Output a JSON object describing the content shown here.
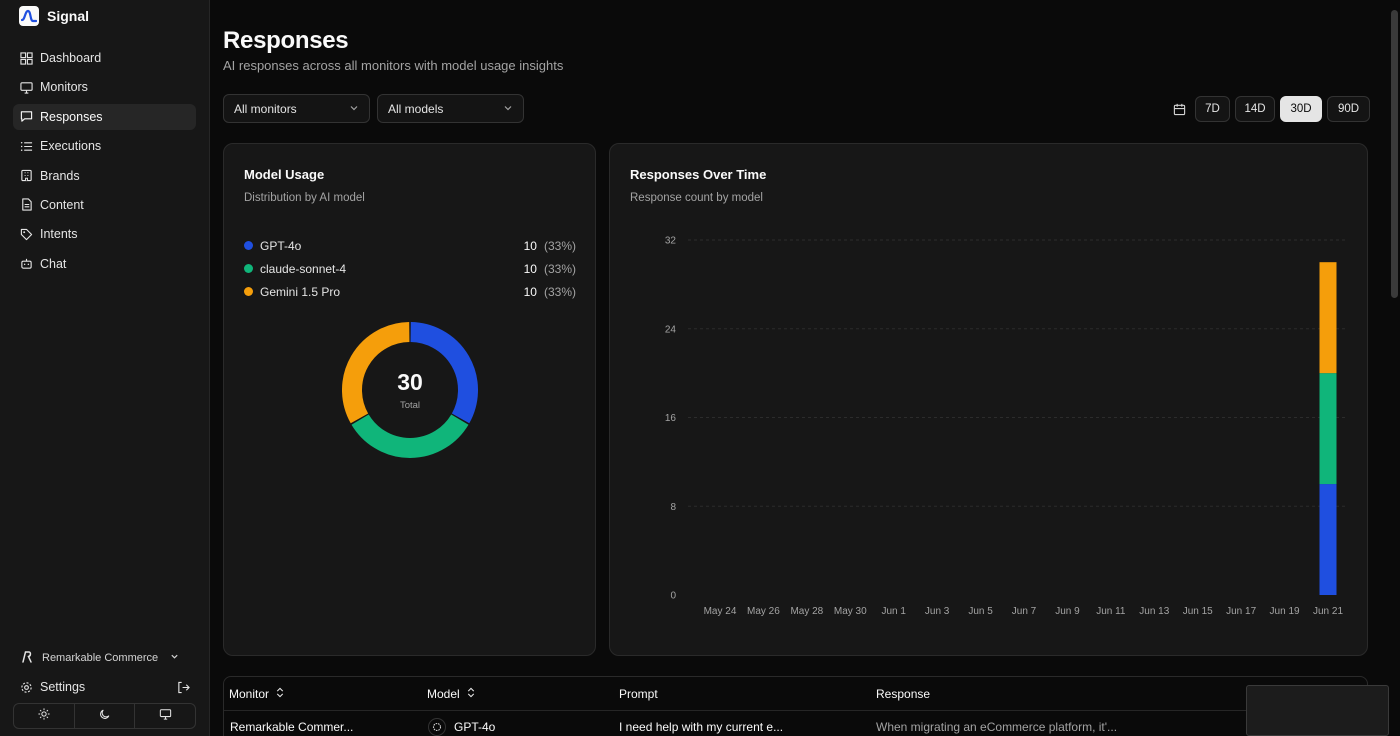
{
  "app": {
    "name": "Signal",
    "logo_icon": "signal-wave-icon"
  },
  "sidebar": {
    "items": [
      {
        "label": "Dashboard",
        "icon": "grid-icon"
      },
      {
        "label": "Monitors",
        "icon": "monitor-icon"
      },
      {
        "label": "Responses",
        "icon": "message-square-icon",
        "active": true
      },
      {
        "label": "Executions",
        "icon": "list-icon"
      },
      {
        "label": "Brands",
        "icon": "building-icon"
      },
      {
        "label": "Content",
        "icon": "file-text-icon"
      },
      {
        "label": "Intents",
        "icon": "tag-icon"
      },
      {
        "label": "Chat",
        "icon": "bot-icon"
      }
    ],
    "org": {
      "name": "Remarkable Commerce"
    },
    "settings_label": "Settings"
  },
  "header": {
    "title": "Responses",
    "subtitle": "AI responses across all monitors with model usage insights"
  },
  "filters": {
    "monitors": "All monitors",
    "models": "All models",
    "ranges": [
      "7D",
      "14D",
      "30D",
      "90D"
    ],
    "active_range": "30D"
  },
  "model_usage": {
    "title": "Model Usage",
    "subtitle": "Distribution by AI model",
    "total": "30",
    "total_label": "Total",
    "models": [
      {
        "name": "GPT-4o",
        "count": "10",
        "pct": "(33%)",
        "color": "#1f4fe0"
      },
      {
        "name": "claude-sonnet-4",
        "count": "10",
        "pct": "(33%)",
        "color": "#10b57a"
      },
      {
        "name": "Gemini 1.5 Pro",
        "count": "10",
        "pct": "(33%)",
        "color": "#f59e0b"
      }
    ]
  },
  "responses_over_time": {
    "title": "Responses Over Time",
    "subtitle": "Response count by model"
  },
  "chart_data": {
    "type": "bar",
    "stacked": true,
    "categories": [
      "May 24",
      "May 26",
      "May 28",
      "May 30",
      "Jun 1",
      "Jun 3",
      "Jun 5",
      "Jun 7",
      "Jun 9",
      "Jun 11",
      "Jun 13",
      "Jun 15",
      "Jun 17",
      "Jun 19",
      "Jun 21"
    ],
    "y_ticks": [
      0,
      8,
      16,
      24,
      32
    ],
    "ylim": [
      0,
      32
    ],
    "grid": true,
    "series": [
      {
        "name": "GPT-4o",
        "color": "#1f4fe0",
        "values": [
          0,
          0,
          0,
          0,
          0,
          0,
          0,
          0,
          0,
          0,
          0,
          0,
          0,
          0,
          10
        ]
      },
      {
        "name": "claude-sonnet-4",
        "color": "#10b57a",
        "values": [
          0,
          0,
          0,
          0,
          0,
          0,
          0,
          0,
          0,
          0,
          0,
          0,
          0,
          0,
          10
        ]
      },
      {
        "name": "Gemini 1.5 Pro",
        "color": "#f59e0b",
        "values": [
          0,
          0,
          0,
          0,
          0,
          0,
          0,
          0,
          0,
          0,
          0,
          0,
          0,
          0,
          10
        ]
      }
    ]
  },
  "table": {
    "columns": [
      "Monitor",
      "Model",
      "Prompt",
      "Response"
    ],
    "rows": [
      {
        "monitor": "Remarkable Commer...",
        "model": "GPT-4o",
        "prompt": "I need help with my current e...",
        "response": "When migrating an eCommerce platform, it'..."
      }
    ]
  }
}
